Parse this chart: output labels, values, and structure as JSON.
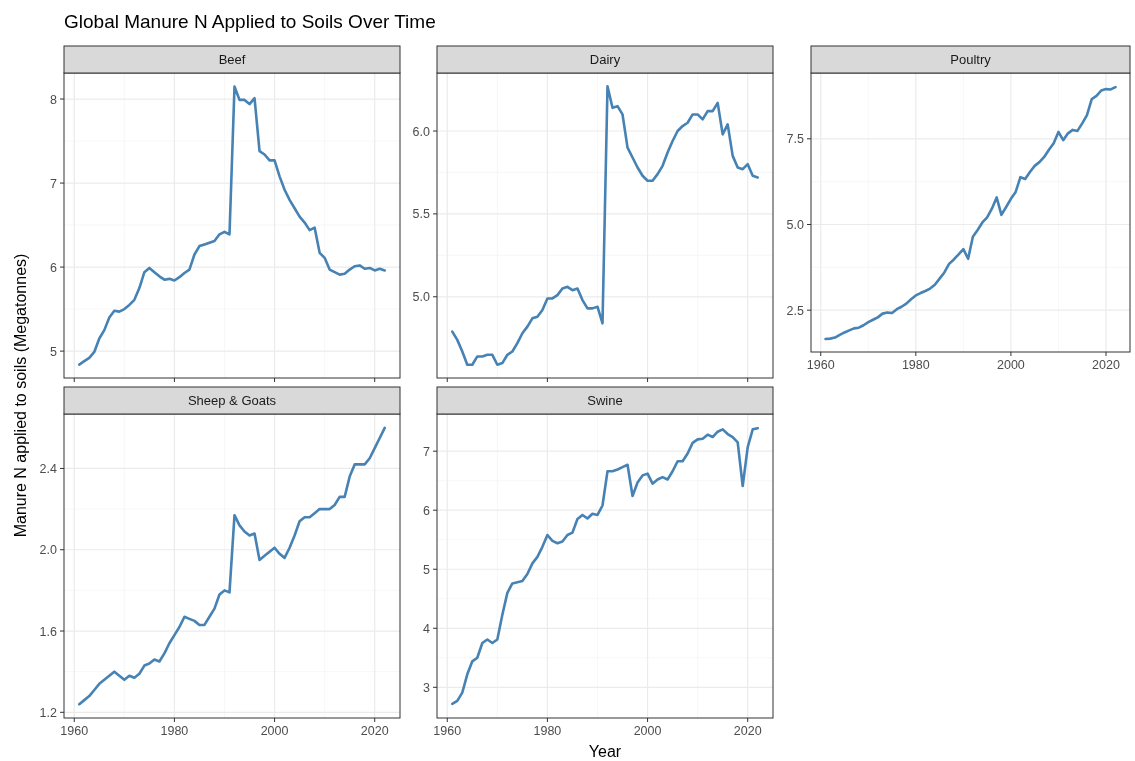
{
  "chart_data": [
    {
      "type": "line",
      "title": "Beef",
      "annotations": [
        "Global Manure N Applied to Soils Over Time"
      ],
      "ylabel": "Manure N applied to soils (Megatonnes)",
      "grid": true,
      "tick_labels": "y",
      "xlim": [
        1957.95,
        2025.05
      ],
      "xticks": [
        1960,
        1980,
        2000,
        2020
      ],
      "ylim": [
        4.68,
        8.31
      ],
      "yticks": [
        5,
        6,
        7,
        8
      ],
      "x": [
        1961,
        1962,
        1963,
        1964,
        1965,
        1966,
        1967,
        1968,
        1969,
        1970,
        1971,
        1972,
        1973,
        1974,
        1975,
        1976,
        1977,
        1978,
        1979,
        1980,
        1981,
        1982,
        1983,
        1984,
        1985,
        1986,
        1987,
        1988,
        1989,
        1990,
        1991,
        1992,
        1993,
        1994,
        1995,
        1996,
        1997,
        1998,
        1999,
        2000,
        2001,
        2002,
        2003,
        2004,
        2005,
        2006,
        2007,
        2008,
        2009,
        2010,
        2011,
        2012,
        2013,
        2014,
        2015,
        2016,
        2017,
        2018,
        2019,
        2020,
        2021,
        2022
      ],
      "series": [
        {
          "color": "#4682b4",
          "values": [
            4.84,
            4.88,
            4.92,
            4.99,
            5.15,
            5.25,
            5.4,
            5.48,
            5.47,
            5.5,
            5.55,
            5.61,
            5.75,
            5.94,
            5.99,
            5.94,
            5.89,
            5.85,
            5.86,
            5.84,
            5.88,
            5.93,
            5.97,
            6.15,
            6.25,
            6.27,
            6.29,
            6.31,
            6.39,
            6.42,
            6.39,
            8.15,
            7.99,
            7.99,
            7.94,
            8.01,
            7.38,
            7.34,
            7.27,
            7.27,
            7.08,
            6.92,
            6.8,
            6.7,
            6.6,
            6.53,
            6.44,
            6.47,
            6.17,
            6.11,
            5.97,
            5.94,
            5.91,
            5.92,
            5.97,
            6.01,
            6.02,
            5.98,
            5.99,
            5.96,
            5.98,
            5.96
          ]
        }
      ]
    },
    {
      "type": "line",
      "title": "Dairy",
      "grid": true,
      "tick_labels": "y",
      "xlim": [
        1957.95,
        2025.05
      ],
      "xticks": [
        1960,
        1980,
        2000,
        2020
      ],
      "ylim": [
        4.51,
        6.35
      ],
      "yticks": [
        {
          "value": 5,
          "label": "5.0"
        },
        5.5,
        {
          "value": 6,
          "label": "6.0"
        }
      ],
      "x": [
        1961,
        1962,
        1963,
        1964,
        1965,
        1966,
        1967,
        1968,
        1969,
        1970,
        1971,
        1972,
        1973,
        1974,
        1975,
        1976,
        1977,
        1978,
        1979,
        1980,
        1981,
        1982,
        1983,
        1984,
        1985,
        1986,
        1987,
        1988,
        1989,
        1990,
        1991,
        1992,
        1993,
        1994,
        1995,
        1996,
        1997,
        1998,
        1999,
        2000,
        2001,
        2002,
        2003,
        2004,
        2005,
        2006,
        2007,
        2008,
        2009,
        2010,
        2011,
        2012,
        2013,
        2014,
        2015,
        2016,
        2017,
        2018,
        2019,
        2020,
        2021,
        2022
      ],
      "series": [
        {
          "color": "#4682b4",
          "values": [
            4.79,
            4.74,
            4.67,
            4.59,
            4.59,
            4.64,
            4.64,
            4.65,
            4.65,
            4.59,
            4.6,
            4.65,
            4.67,
            4.72,
            4.78,
            4.82,
            4.87,
            4.88,
            4.92,
            4.99,
            4.99,
            5.01,
            5.05,
            5.06,
            5.04,
            5.05,
            4.98,
            4.93,
            4.93,
            4.94,
            4.84,
            6.27,
            6.14,
            6.15,
            6.1,
            5.9,
            5.84,
            5.78,
            5.73,
            5.7,
            5.7,
            5.74,
            5.79,
            5.87,
            5.94,
            6.0,
            6.03,
            6.05,
            6.1,
            6.1,
            6.07,
            6.12,
            6.12,
            6.17,
            5.98,
            6.04,
            5.85,
            5.78,
            5.77,
            5.8,
            5.73,
            5.72
          ]
        }
      ]
    },
    {
      "type": "line",
      "title": "Poultry",
      "grid": true,
      "xlim": [
        1957.95,
        2025.05
      ],
      "xticks": [
        1960,
        1980,
        2000,
        2020
      ],
      "ylim": [
        1.28,
        9.42
      ],
      "yticks": [
        2.5,
        {
          "value": 5,
          "label": "5.0"
        },
        7.5
      ],
      "x": [
        1961,
        1962,
        1963,
        1964,
        1965,
        1966,
        1967,
        1968,
        1969,
        1970,
        1971,
        1972,
        1973,
        1974,
        1975,
        1976,
        1977,
        1978,
        1979,
        1980,
        1981,
        1982,
        1983,
        1984,
        1985,
        1986,
        1987,
        1988,
        1989,
        1990,
        1991,
        1992,
        1993,
        1994,
        1995,
        1996,
        1997,
        1998,
        1999,
        2000,
        2001,
        2002,
        2003,
        2004,
        2005,
        2006,
        2007,
        2008,
        2009,
        2010,
        2011,
        2012,
        2013,
        2014,
        2015,
        2016,
        2017,
        2018,
        2019,
        2020,
        2021,
        2022
      ],
      "series": [
        {
          "color": "#4682b4",
          "values": [
            1.66,
            1.67,
            1.7,
            1.78,
            1.85,
            1.91,
            1.97,
            1.99,
            2.06,
            2.15,
            2.22,
            2.29,
            2.4,
            2.43,
            2.42,
            2.53,
            2.6,
            2.69,
            2.82,
            2.93,
            3.0,
            3.06,
            3.13,
            3.24,
            3.42,
            3.6,
            3.85,
            3.98,
            4.13,
            4.28,
            4.0,
            4.64,
            4.84,
            5.06,
            5.21,
            5.46,
            5.79,
            5.28,
            5.51,
            5.75,
            5.95,
            6.38,
            6.33,
            6.53,
            6.71,
            6.82,
            6.97,
            7.18,
            7.37,
            7.7,
            7.46,
            7.66,
            7.76,
            7.73,
            7.95,
            8.19,
            8.66,
            8.75,
            8.91,
            8.95,
            8.94,
            9.01
          ]
        }
      ]
    },
    {
      "type": "line",
      "title": "Sheep & Goats",
      "grid": true,
      "xlim": [
        1957.95,
        2025.05
      ],
      "xticks": [
        1960,
        1980,
        2000,
        2020
      ],
      "ylim": [
        1.172,
        2.668
      ],
      "yticks": [
        1.2,
        1.6,
        {
          "value": 2,
          "label": "2.0"
        },
        2.4
      ],
      "x": [
        1961,
        1962,
        1963,
        1964,
        1965,
        1966,
        1967,
        1968,
        1969,
        1970,
        1971,
        1972,
        1973,
        1974,
        1975,
        1976,
        1977,
        1978,
        1979,
        1980,
        1981,
        1982,
        1983,
        1984,
        1985,
        1986,
        1987,
        1988,
        1989,
        1990,
        1991,
        1992,
        1993,
        1994,
        1995,
        1996,
        1997,
        1998,
        1999,
        2000,
        2001,
        2002,
        2003,
        2004,
        2005,
        2006,
        2007,
        2008,
        2009,
        2010,
        2011,
        2012,
        2013,
        2014,
        2015,
        2016,
        2017,
        2018,
        2019,
        2020,
        2021,
        2022
      ],
      "series": [
        {
          "color": "#4682b4",
          "values": [
            1.24,
            1.26,
            1.28,
            1.31,
            1.34,
            1.36,
            1.38,
            1.4,
            1.38,
            1.36,
            1.38,
            1.37,
            1.39,
            1.43,
            1.44,
            1.46,
            1.45,
            1.49,
            1.54,
            1.58,
            1.62,
            1.67,
            1.66,
            1.65,
            1.63,
            1.63,
            1.67,
            1.71,
            1.78,
            1.8,
            1.79,
            2.17,
            2.12,
            2.09,
            2.07,
            2.08,
            1.95,
            1.97,
            1.99,
            2.01,
            1.98,
            1.96,
            2.01,
            2.07,
            2.14,
            2.16,
            2.16,
            2.18,
            2.2,
            2.2,
            2.2,
            2.22,
            2.26,
            2.26,
            2.36,
            2.42,
            2.42,
            2.42,
            2.45,
            2.5,
            2.55,
            2.6
          ]
        }
      ]
    },
    {
      "type": "line",
      "title": "Swine",
      "xlabel": "Year",
      "grid": true,
      "xlim": [
        1957.95,
        2025.05
      ],
      "xticks": [
        1960,
        1980,
        2000,
        2020
      ],
      "ylim": [
        2.48,
        7.63
      ],
      "yticks": [
        3,
        4,
        5,
        6,
        7
      ],
      "x": [
        1961,
        1962,
        1963,
        1964,
        1965,
        1966,
        1967,
        1968,
        1969,
        1970,
        1971,
        1972,
        1973,
        1974,
        1975,
        1976,
        1977,
        1978,
        1979,
        1980,
        1981,
        1982,
        1983,
        1984,
        1985,
        1986,
        1987,
        1988,
        1989,
        1990,
        1991,
        1992,
        1993,
        1994,
        1995,
        1996,
        1997,
        1998,
        1999,
        2000,
        2001,
        2002,
        2003,
        2004,
        2005,
        2006,
        2007,
        2008,
        2009,
        2010,
        2011,
        2012,
        2013,
        2014,
        2015,
        2016,
        2017,
        2018,
        2019,
        2020,
        2021,
        2022
      ],
      "series": [
        {
          "color": "#4682b4",
          "values": [
            2.72,
            2.77,
            2.91,
            3.22,
            3.44,
            3.5,
            3.75,
            3.81,
            3.75,
            3.81,
            4.23,
            4.6,
            4.76,
            4.78,
            4.8,
            4.92,
            5.1,
            5.21,
            5.38,
            5.58,
            5.48,
            5.44,
            5.47,
            5.58,
            5.62,
            5.85,
            5.92,
            5.86,
            5.94,
            5.92,
            6.08,
            6.66,
            6.66,
            6.69,
            6.73,
            6.77,
            6.24,
            6.47,
            6.59,
            6.62,
            6.45,
            6.52,
            6.56,
            6.52,
            6.66,
            6.83,
            6.83,
            6.96,
            7.14,
            7.2,
            7.21,
            7.28,
            7.24,
            7.33,
            7.37,
            7.29,
            7.24,
            7.15,
            6.41,
            7.07,
            7.37,
            7.39
          ]
        }
      ]
    }
  ]
}
